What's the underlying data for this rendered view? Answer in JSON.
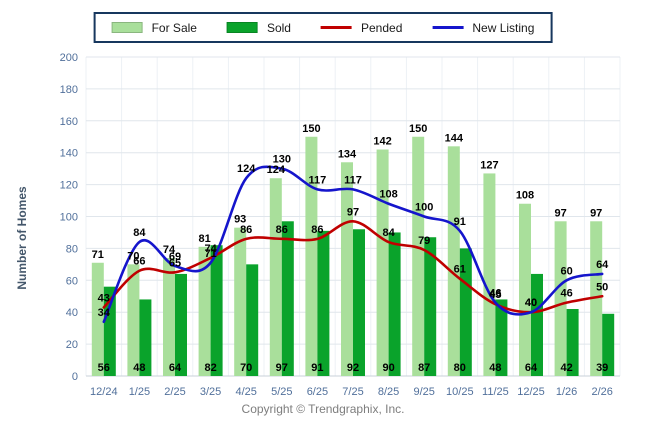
{
  "chart_data": {
    "type": "bar",
    "title": "",
    "categories": [
      "12/24",
      "1/25",
      "2/25",
      "3/25",
      "4/25",
      "5/25",
      "6/25",
      "7/25",
      "8/25",
      "9/25",
      "10/25",
      "11/25",
      "12/25",
      "1/26",
      "2/26"
    ],
    "series": [
      {
        "name": "For Sale",
        "render": "bar",
        "color": "#A9DF9B",
        "values": [
          71,
          70,
          74,
          81,
          93,
          124,
          150,
          134,
          142,
          150,
          144,
          127,
          108,
          97,
          97
        ],
        "label_position": "above-bar"
      },
      {
        "name": "Sold",
        "render": "bar",
        "color": "#0AA32B",
        "values": [
          56,
          48,
          64,
          82,
          70,
          97,
          91,
          92,
          90,
          87,
          80,
          48,
          64,
          42,
          39
        ],
        "label_position": "bottom-inside"
      },
      {
        "name": "Pended",
        "render": "line",
        "color": "#C00000",
        "values": [
          43,
          66,
          65,
          74,
          86,
          86,
          86,
          97,
          84,
          79,
          61,
          45,
          40,
          46,
          50
        ],
        "label_position": "above-point"
      },
      {
        "name": "New Listing",
        "render": "line",
        "color": "#1515CC",
        "values": [
          34,
          84,
          69,
          71,
          124,
          130,
          117,
          117,
          108,
          100,
          91,
          46,
          40,
          60,
          64
        ],
        "label_position": "above-point"
      }
    ],
    "xlabel": "",
    "ylabel": "Number of Homes",
    "ylim": [
      0,
      200
    ],
    "ytick_step": 20,
    "grid": true,
    "legend_position": "top"
  },
  "footer": {
    "copyright": "Copyright © Trendgraphix, Inc."
  }
}
